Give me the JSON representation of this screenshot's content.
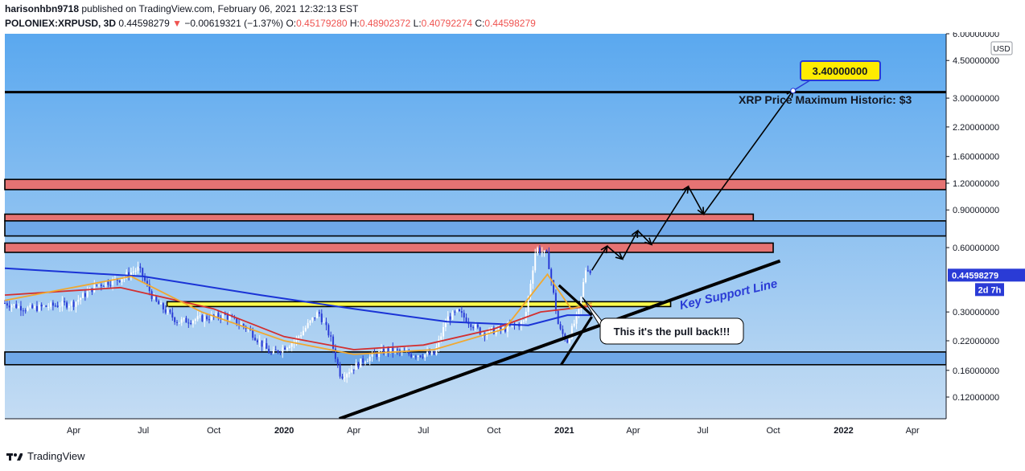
{
  "header": {
    "author": "harisonhbn9718",
    "published_text": "published on TradingView.com, February 06, 2021 12:32:13 EST",
    "symbol": "POLONIEX:XRPUSD, 3D",
    "last": "0.44598279",
    "change": "−0.00619321 (−1.37%)",
    "o_label": "O:",
    "o": "0.45179280",
    "h_label": "H:",
    "h": "0.48902372",
    "l_label": "L:",
    "l": "0.40792274",
    "c_label": "C:",
    "c": "0.44598279"
  },
  "footer": {
    "brand": "TradingView"
  },
  "colors": {
    "bg_top": "#5aa8ef",
    "bg_bottom": "#c4dcf3",
    "up": "#ffffff",
    "down": "#2a3bd6",
    "zone_red": "#e57373",
    "zone_blue": "#6fa8e8",
    "zone_yellow": "#ffff4d",
    "ma_long": "#1a33d6",
    "ma_mid": "#d32f2f",
    "ma_short": "#f0a830",
    "price_tag": "#2a3bd6"
  },
  "chart_data": {
    "type": "candlestick",
    "title": "",
    "ylabel": "",
    "y_scale": "log",
    "ylim": [
      0.095,
      6.0
    ],
    "currency": "USD",
    "x_ticks": [
      "Apr",
      "Jul",
      "Oct",
      "2020",
      "Apr",
      "Jul",
      "Oct",
      "2021",
      "Apr",
      "Jul",
      "Oct",
      "2022",
      "Apr"
    ],
    "x_tick_dates": [
      "2019-04-01",
      "2019-07-01",
      "2019-10-01",
      "2020-01-01",
      "2020-04-01",
      "2020-07-01",
      "2020-10-01",
      "2021-01-01",
      "2021-04-01",
      "2021-07-01",
      "2021-10-01",
      "2022-01-01",
      "2022-04-01"
    ],
    "x_range": [
      "2019-01-01",
      "2022-05-15"
    ],
    "y_ticks": [
      "6.00000000",
      "4.50000000",
      "3.00000000",
      "2.20000000",
      "1.60000000",
      "1.20000000",
      "0.90000000",
      "0.60000000",
      "0.30000000",
      "0.22000000",
      "0.16000000",
      "0.12000000"
    ],
    "y_tick_values": [
      6.0,
      4.5,
      3.0,
      2.2,
      1.6,
      1.2,
      0.9,
      0.6,
      0.3,
      0.22,
      0.16,
      0.12
    ],
    "price_series": [
      {
        "date": "2019-01-01",
        "price": 0.33
      },
      {
        "date": "2019-02-01",
        "price": 0.31
      },
      {
        "date": "2019-03-01",
        "price": 0.32
      },
      {
        "date": "2019-04-01",
        "price": 0.33
      },
      {
        "date": "2019-05-01",
        "price": 0.4
      },
      {
        "date": "2019-06-01",
        "price": 0.43
      },
      {
        "date": "2019-06-25",
        "price": 0.48
      },
      {
        "date": "2019-07-15",
        "price": 0.34
      },
      {
        "date": "2019-08-15",
        "price": 0.27
      },
      {
        "date": "2019-09-15",
        "price": 0.28
      },
      {
        "date": "2019-10-15",
        "price": 0.29
      },
      {
        "date": "2019-11-15",
        "price": 0.25
      },
      {
        "date": "2019-12-15",
        "price": 0.19
      },
      {
        "date": "2020-01-15",
        "price": 0.22
      },
      {
        "date": "2020-02-15",
        "price": 0.3
      },
      {
        "date": "2020-03-01",
        "price": 0.23
      },
      {
        "date": "2020-03-15",
        "price": 0.15
      },
      {
        "date": "2020-04-15",
        "price": 0.18
      },
      {
        "date": "2020-05-15",
        "price": 0.2
      },
      {
        "date": "2020-06-15",
        "price": 0.19
      },
      {
        "date": "2020-07-15",
        "price": 0.19
      },
      {
        "date": "2020-08-01",
        "price": 0.28
      },
      {
        "date": "2020-08-15",
        "price": 0.3
      },
      {
        "date": "2020-09-15",
        "price": 0.24
      },
      {
        "date": "2020-10-15",
        "price": 0.25
      },
      {
        "date": "2020-11-10",
        "price": 0.27
      },
      {
        "date": "2020-11-25",
        "price": 0.6
      },
      {
        "date": "2020-12-10",
        "price": 0.55
      },
      {
        "date": "2020-12-25",
        "price": 0.25
      },
      {
        "date": "2021-01-05",
        "price": 0.22
      },
      {
        "date": "2021-01-20",
        "price": 0.3
      },
      {
        "date": "2021-01-30",
        "price": 0.5
      },
      {
        "date": "2021-02-06",
        "price": 0.446
      }
    ],
    "series": [
      {
        "name": "",
        "kind": "ma_long",
        "points": [
          {
            "date": "2019-01-01",
            "price": 0.48
          },
          {
            "date": "2019-07-01",
            "price": 0.44
          },
          {
            "date": "2019-12-01",
            "price": 0.36
          },
          {
            "date": "2020-04-01",
            "price": 0.31
          },
          {
            "date": "2020-08-01",
            "price": 0.27
          },
          {
            "date": "2020-11-15",
            "price": 0.26
          },
          {
            "date": "2021-01-05",
            "price": 0.29
          },
          {
            "date": "2021-02-06",
            "price": 0.29
          }
        ]
      },
      {
        "name": "",
        "kind": "ma_mid",
        "points": [
          {
            "date": "2019-01-01",
            "price": 0.36
          },
          {
            "date": "2019-06-01",
            "price": 0.39
          },
          {
            "date": "2019-10-01",
            "price": 0.31
          },
          {
            "date": "2020-01-01",
            "price": 0.23
          },
          {
            "date": "2020-04-01",
            "price": 0.2
          },
          {
            "date": "2020-07-01",
            "price": 0.21
          },
          {
            "date": "2020-10-01",
            "price": 0.25
          },
          {
            "date": "2020-12-01",
            "price": 0.3
          },
          {
            "date": "2021-02-06",
            "price": 0.32
          }
        ]
      },
      {
        "name": "",
        "kind": "ma_short",
        "points": [
          {
            "date": "2019-01-01",
            "price": 0.34
          },
          {
            "date": "2019-06-15",
            "price": 0.44
          },
          {
            "date": "2019-09-15",
            "price": 0.3
          },
          {
            "date": "2020-01-01",
            "price": 0.22
          },
          {
            "date": "2020-04-01",
            "price": 0.19
          },
          {
            "date": "2020-07-15",
            "price": 0.2
          },
          {
            "date": "2020-10-15",
            "price": 0.25
          },
          {
            "date": "2020-12-10",
            "price": 0.45
          },
          {
            "date": "2021-01-10",
            "price": 0.31
          },
          {
            "date": "2021-02-06",
            "price": 0.33
          }
        ]
      }
    ],
    "zones": [
      {
        "type": "red",
        "from": 1.12,
        "to": 1.25,
        "x_end": "2022-05-15"
      },
      {
        "type": "red",
        "from": 0.8,
        "to": 0.86,
        "x_end": "2021-09-05"
      },
      {
        "type": "blue",
        "from": 0.68,
        "to": 0.8,
        "x_end": "2022-05-15"
      },
      {
        "type": "red",
        "from": 0.57,
        "to": 0.63,
        "x_end": "2021-10-01"
      },
      {
        "type": "yellow",
        "from": 0.318,
        "to": 0.335,
        "x_start": "2019-08-01",
        "x_end": "2021-05-20"
      },
      {
        "type": "blue",
        "from": 0.17,
        "to": 0.195,
        "x_end": "2022-05-15"
      }
    ],
    "horizontal_lines": [
      {
        "price": 3.2,
        "x_end": "2022-05-15"
      }
    ],
    "trend_lines": [
      {
        "from": {
          "date": "2020-03-13",
          "price": 0.095
        },
        "to": {
          "date": "2021-10-10",
          "price": 0.52
        }
      },
      {
        "from": {
          "date": "2020-12-25",
          "price": 0.4
        },
        "to": {
          "date": "2021-02-06",
          "price": 0.29
        }
      },
      {
        "from": {
          "date": "2020-12-28",
          "price": 0.17
        },
        "to": {
          "date": "2021-02-06",
          "price": 0.285
        }
      }
    ],
    "projection_path": [
      {
        "date": "2021-02-06",
        "price": 0.47
      },
      {
        "date": "2021-02-26",
        "price": 0.61
      },
      {
        "date": "2021-03-18",
        "price": 0.53
      },
      {
        "date": "2021-04-07",
        "price": 0.72
      },
      {
        "date": "2021-04-25",
        "price": 0.62
      },
      {
        "date": "2021-06-12",
        "price": 1.16
      },
      {
        "date": "2021-07-02",
        "price": 0.86
      },
      {
        "date": "2021-10-27",
        "price": 3.25
      }
    ],
    "annotations": [
      {
        "text": "3.40000000",
        "kind": "price_label"
      },
      {
        "text": "XRP Price  Maximum Historic: $3",
        "kind": "text"
      },
      {
        "text": "Key Support Line",
        "kind": "text"
      },
      {
        "text": "This it's the pull back!!!",
        "kind": "callout"
      }
    ],
    "current_price": {
      "value": "0.44598279",
      "countdown": "2d 7h"
    },
    "grid": false,
    "legend": "none"
  }
}
